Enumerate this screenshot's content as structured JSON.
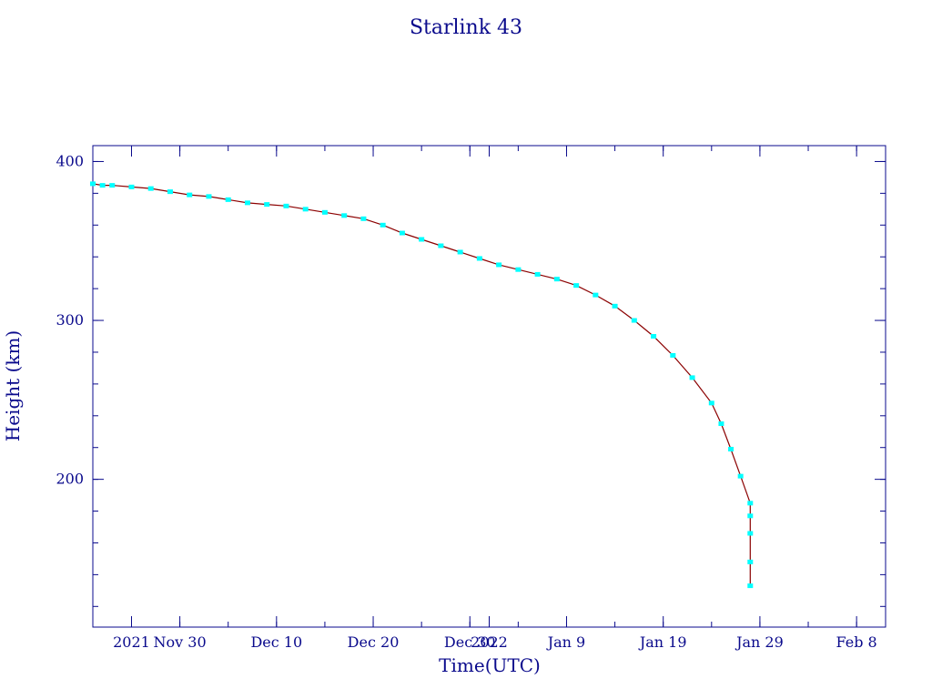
{
  "chart_data": {
    "type": "line",
    "title": "Starlink 43",
    "xlabel": "Time(UTC)",
    "ylabel": "Height (km)",
    "x_axis": "date",
    "xlim": [
      "2021-11-21",
      "2022-02-11"
    ],
    "ylim": [
      107,
      410
    ],
    "x_ticks": [
      {
        "date": "2021-11-25",
        "label": "2021"
      },
      {
        "date": "2021-11-30",
        "label": "Nov 30"
      },
      {
        "date": "2021-12-10",
        "label": "Dec 10"
      },
      {
        "date": "2021-12-20",
        "label": "Dec 20"
      },
      {
        "date": "2021-12-30",
        "label": "Dec 30"
      },
      {
        "date": "2022-01-01",
        "label": "2022"
      },
      {
        "date": "2022-01-09",
        "label": "Jan 9"
      },
      {
        "date": "2022-01-19",
        "label": "Jan 19"
      },
      {
        "date": "2022-01-29",
        "label": "Jan 29"
      },
      {
        "date": "2022-02-08",
        "label": "Feb 8"
      }
    ],
    "y_ticks": [
      {
        "value": 200,
        "label": "200"
      },
      {
        "value": 300,
        "label": "300"
      },
      {
        "value": 400,
        "label": "400"
      }
    ],
    "y_minor_step": 20,
    "grid": false,
    "colors": {
      "line": "#8b0000",
      "markers": "#00ffff",
      "axes": "#0a0a8c"
    },
    "series": [
      {
        "x": [
          "2021-11-21",
          "2021-11-22",
          "2021-11-23",
          "2021-11-25",
          "2021-11-27",
          "2021-11-29",
          "2021-12-01",
          "2021-12-03",
          "2021-12-05",
          "2021-12-07",
          "2021-12-09",
          "2021-12-11",
          "2021-12-13",
          "2021-12-15",
          "2021-12-17",
          "2021-12-19",
          "2021-12-21",
          "2021-12-23",
          "2021-12-25",
          "2021-12-27",
          "2021-12-29",
          "2021-12-31",
          "2022-01-02",
          "2022-01-04",
          "2022-01-06",
          "2022-01-08",
          "2022-01-10",
          "2022-01-12",
          "2022-01-14",
          "2022-01-16",
          "2022-01-18",
          "2022-01-20",
          "2022-01-22",
          "2022-01-24",
          "2022-01-25",
          "2022-01-26",
          "2022-01-27",
          "2022-01-28",
          "2022-01-28",
          "2022-01-28",
          "2022-01-28",
          "2022-01-28"
        ],
        "y": [
          386,
          385,
          385,
          384,
          383,
          381,
          379,
          378,
          376,
          374,
          373,
          372,
          370,
          368,
          366,
          364,
          360,
          355,
          351,
          347,
          343,
          339,
          335,
          332,
          329,
          326,
          322,
          316,
          309,
          300,
          290,
          278,
          264,
          248,
          235,
          219,
          202,
          185,
          177,
          166,
          148,
          133
        ]
      }
    ]
  }
}
